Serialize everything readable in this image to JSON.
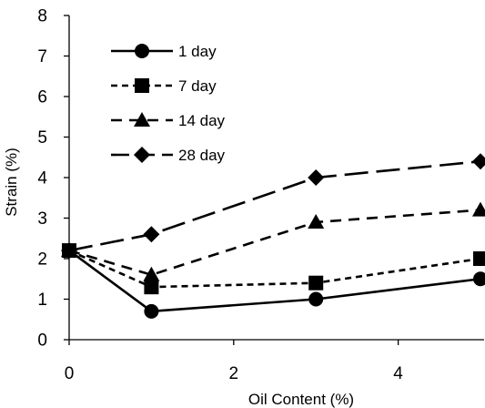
{
  "chart_data": {
    "type": "line",
    "title": "",
    "xlabel": "Oil Content (%)",
    "ylabel": "Strain (%)",
    "xlim": [
      0,
      5
    ],
    "ylim": [
      0,
      8
    ],
    "x_ticks": [
      0,
      2,
      4
    ],
    "y_ticks": [
      0,
      1,
      2,
      3,
      4,
      5,
      6,
      7,
      8
    ],
    "grid": false,
    "legend_position": "top-left",
    "series": [
      {
        "name": "1 day",
        "marker": "circle",
        "dash": "solid",
        "color": "#000000",
        "x": [
          0,
          1,
          3,
          5
        ],
        "y": [
          2.2,
          0.7,
          1.0,
          1.5
        ]
      },
      {
        "name": "7 day",
        "marker": "square",
        "dash": "short-dash",
        "color": "#000000",
        "x": [
          0,
          1,
          3,
          5
        ],
        "y": [
          2.2,
          1.3,
          1.4,
          2.0
        ]
      },
      {
        "name": "14 day",
        "marker": "triangle",
        "dash": "medium-dash",
        "color": "#000000",
        "x": [
          0,
          1,
          3,
          5
        ],
        "y": [
          2.2,
          1.6,
          2.9,
          3.2
        ]
      },
      {
        "name": "28 day",
        "marker": "diamond",
        "dash": "long-dash",
        "color": "#000000",
        "x": [
          0,
          1,
          3,
          5
        ],
        "y": [
          2.2,
          2.6,
          4.0,
          4.4
        ]
      }
    ]
  }
}
